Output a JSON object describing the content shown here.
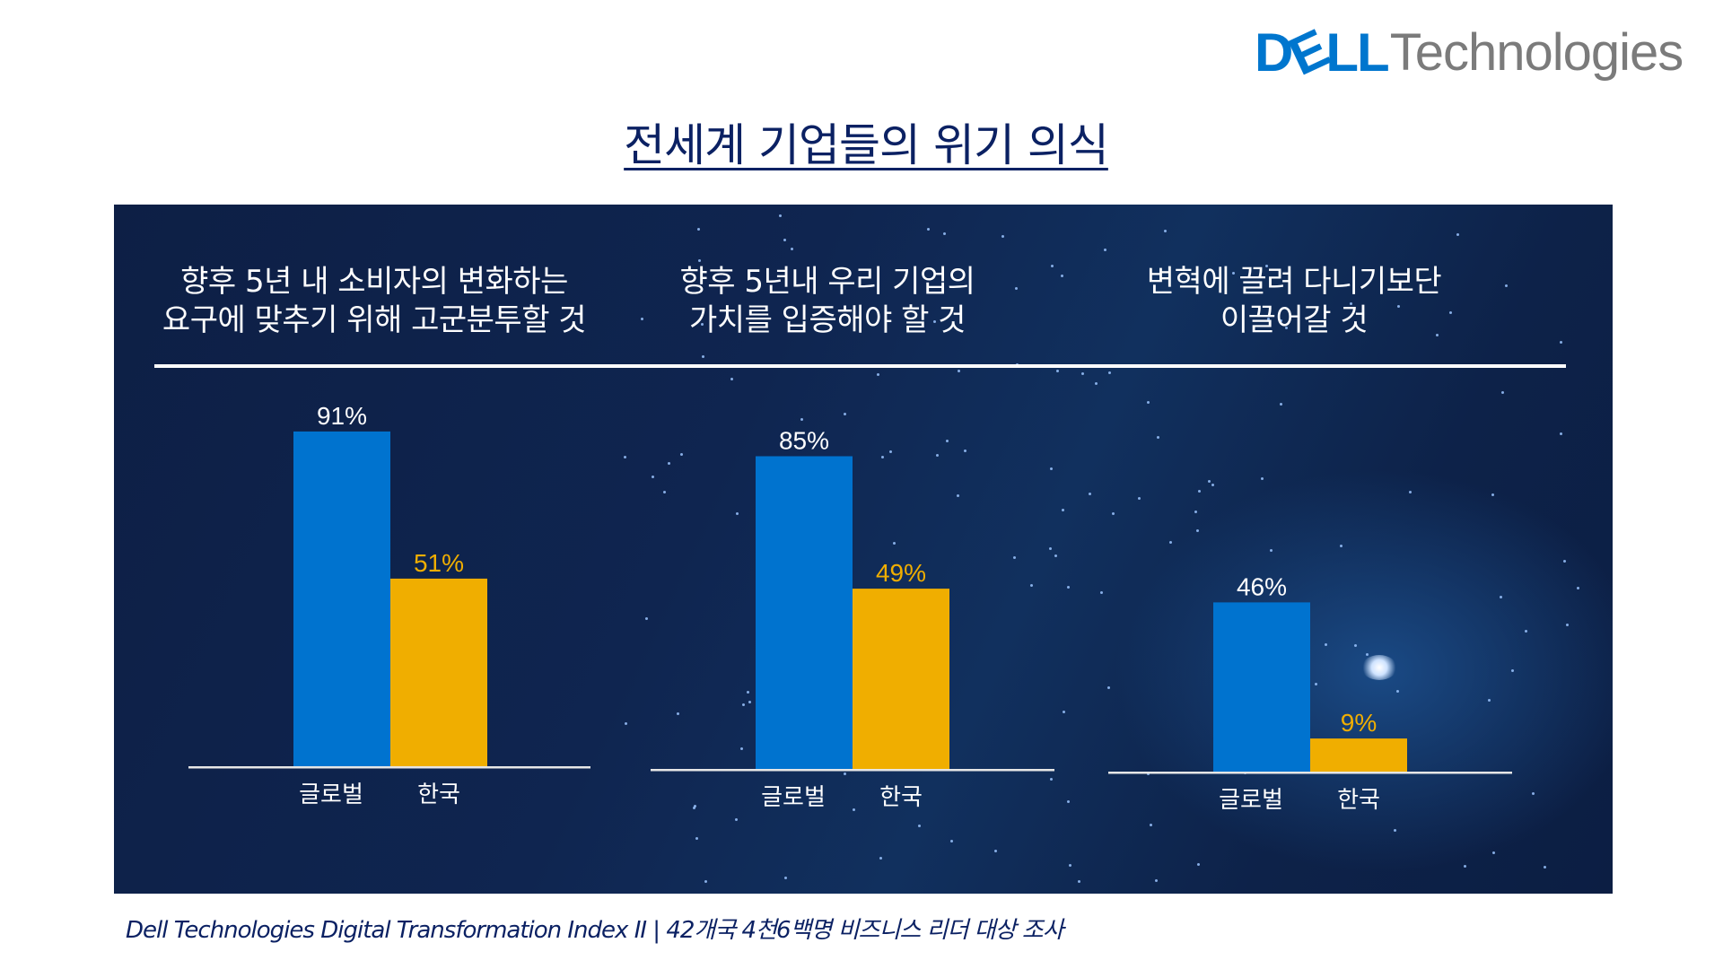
{
  "brand": {
    "logo_dell": "DELL",
    "logo_technologies": "Technologies",
    "primary_color": "#0076ce"
  },
  "page": {
    "title": "전세계 기업들의 위기 의식"
  },
  "footer": {
    "source": "Dell Technologies Digital Transformation Index II | 42개국 4천6백명 비즈니스 리더 대상 조사"
  },
  "colors": {
    "global": "#0073cf",
    "korea": "#f0ae00",
    "korea_label": "#f0ae00",
    "global_label": "#ffffff",
    "axis": "#e6e6e6"
  },
  "chart_data": [
    {
      "type": "bar",
      "title": "향후 5년 내 소비자의 변화하는\n요구에 맞추기 위해 고군분투할 것",
      "categories": [
        "글로벌",
        "한국"
      ],
      "values": [
        91,
        51
      ],
      "labels": [
        "91%",
        "51%"
      ],
      "unit": "%",
      "ylim": [
        0,
        100
      ],
      "grid": false,
      "xlabel": "",
      "ylabel": ""
    },
    {
      "type": "bar",
      "title": "향후 5년내 우리 기업의\n가치를 입증해야 할 것",
      "categories": [
        "글로벌",
        "한국"
      ],
      "values": [
        85,
        49
      ],
      "labels": [
        "85%",
        "49%"
      ],
      "unit": "%",
      "ylim": [
        0,
        100
      ],
      "grid": false,
      "xlabel": "",
      "ylabel": ""
    },
    {
      "type": "bar",
      "title": "변혁에 끌려 다니기보단\n이끌어갈 것",
      "categories": [
        "글로벌",
        "한국"
      ],
      "values": [
        46,
        9
      ],
      "labels": [
        "46%",
        "9%"
      ],
      "unit": "%",
      "ylim": [
        0,
        100
      ],
      "grid": false,
      "xlabel": "",
      "ylabel": ""
    }
  ]
}
